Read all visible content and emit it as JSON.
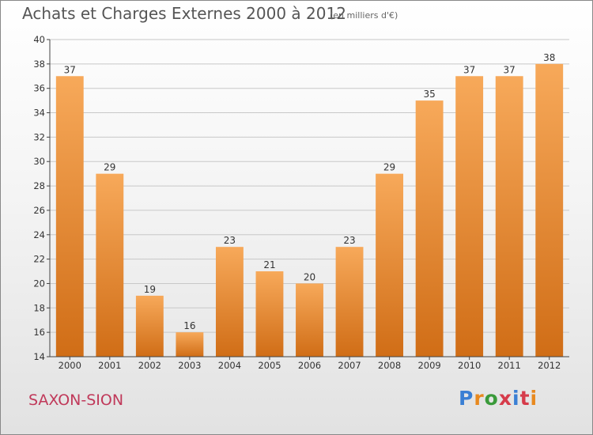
{
  "title": "Achats et Charges Externes 2000 à 2012",
  "subtitle": "(en milliers d'€)",
  "commune": "SAXON-SION",
  "logo": {
    "text": "Proxiti",
    "letter_colors": [
      "#3a7fd4",
      "#e8891f",
      "#3a9a3a",
      "#d63b4a",
      "#3a7fd4",
      "#d63b4a",
      "#e8891f"
    ]
  },
  "colors": {
    "bar_top": "#f7a95a",
    "bar_bottom": "#d06d16",
    "grid": "#c8c8c8",
    "axis": "#444444"
  },
  "chart_data": {
    "type": "bar",
    "title": "Achats et Charges Externes 2000 à 2012",
    "subtitle": "(en milliers d'€)",
    "xlabel": "",
    "ylabel": "",
    "categories": [
      "2000",
      "2001",
      "2002",
      "2003",
      "2004",
      "2005",
      "2006",
      "2007",
      "2008",
      "2009",
      "2010",
      "2011",
      "2012"
    ],
    "values": [
      37,
      29,
      19,
      16,
      23,
      21,
      20,
      23,
      29,
      35,
      37,
      37,
      38
    ],
    "ylim": [
      14,
      40
    ],
    "yticks": [
      14,
      16,
      18,
      20,
      22,
      24,
      26,
      28,
      30,
      32,
      34,
      36,
      38,
      40
    ],
    "grid": true,
    "data_labels": true
  }
}
